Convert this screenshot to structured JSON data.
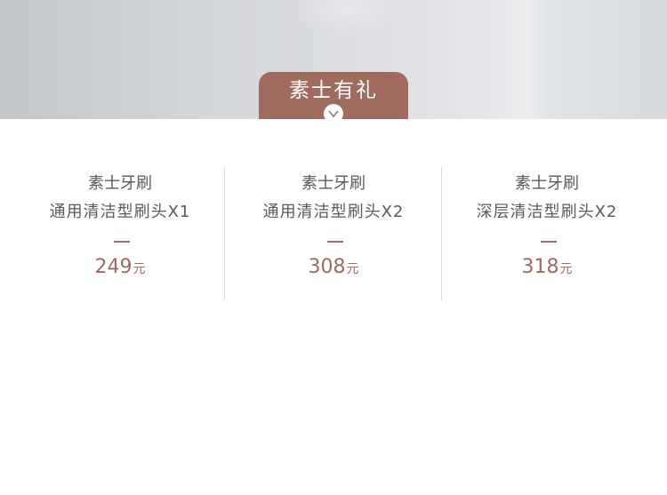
{
  "banner": {
    "tab_title": "素士有礼"
  },
  "products": [
    {
      "name": "素士牙刷",
      "variant": "通用清洁型刷头X1",
      "separator": "—",
      "price": "249",
      "unit": "元"
    },
    {
      "name": "素士牙刷",
      "variant": "通用清洁型刷头X2",
      "separator": "—",
      "price": "308",
      "unit": "元"
    },
    {
      "name": "素士牙刷",
      "variant": "深层清洁型刷头X2",
      "separator": "—",
      "price": "318",
      "unit": "元"
    }
  ],
  "colors": {
    "accent": "#9e6b5e",
    "text": "#5a5a5a",
    "divider": "#dddddd"
  },
  "icons": {
    "tab_toggle": "chevron-down-icon"
  }
}
